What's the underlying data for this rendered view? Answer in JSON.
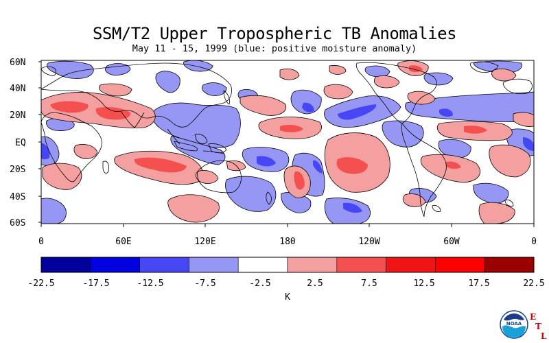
{
  "header": {
    "title": "SSM/T2 Upper Tropospheric TB Anomalies",
    "subtitle": "May 11 - 15, 1999 (blue: positive moisture anomaly)"
  },
  "map": {
    "lat_labels": [
      "60N",
      "40N",
      "20N",
      "EQ",
      "20S",
      "40S",
      "60S"
    ],
    "lon_labels": [
      "0",
      "60E",
      "120E",
      "180",
      "120W",
      "60W",
      "0"
    ],
    "lat_range": [
      -60,
      60
    ],
    "lon_range": [
      0,
      360
    ]
  },
  "colorbar": {
    "unit_label": "K",
    "tick_labels": [
      "-22.5",
      "-17.5",
      "-12.5",
      "-7.5",
      "-2.5",
      "2.5",
      "7.5",
      "12.5",
      "17.5",
      "22.5"
    ],
    "colors": [
      "#00009a",
      "#0000e1",
      "#4646f5",
      "#9696f5",
      "#ffffff",
      "#f5a0a0",
      "#f55050",
      "#f01414",
      "#ff0000",
      "#9b0000"
    ]
  },
  "logo": {
    "name": "noaa-logo",
    "text": "NOAA",
    "letters": [
      "E",
      "T",
      "L"
    ]
  }
}
